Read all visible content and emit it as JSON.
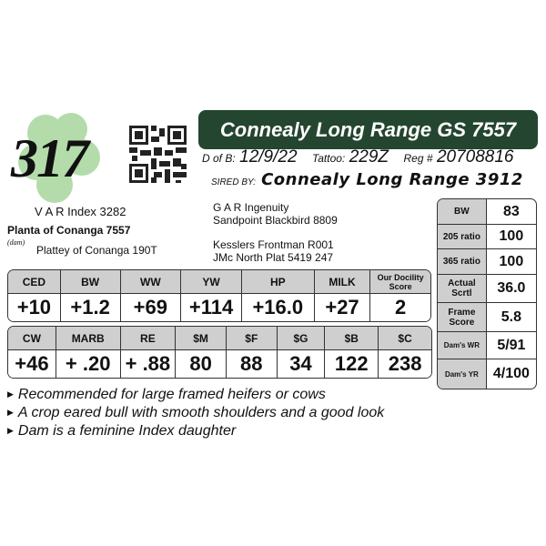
{
  "lot_number": "317",
  "title": "Connealy Long Range GS 7557",
  "info": {
    "dob_label": "D of B:",
    "dob": "12/9/22",
    "tattoo_label": "Tattoo:",
    "tattoo": "229Z",
    "reg_label": "Reg #",
    "reg": "20708816"
  },
  "sire": {
    "label": "SIRED BY:",
    "name": "Connealy Long Range 3912"
  },
  "pedigree": {
    "var_index": "V A R Index 3282",
    "dam": "Planta of Conanga 7557",
    "dam_label": "(dam)",
    "dam_sire": "Plattey of Conanga 190T",
    "sire_sire": "G A R Ingenuity",
    "sire_dam": "Sandpoint Blackbird 8809",
    "dam_line1": "Kesslers Frontman R001",
    "dam_line2": "JMc North Plat 5419 247"
  },
  "epd1": {
    "headers": [
      "CED",
      "BW",
      "WW",
      "YW",
      "HP",
      "MILK",
      "Our Docility Score"
    ],
    "values": [
      "+10",
      "+1.2",
      "+69",
      "+114",
      "+16.0",
      "+27",
      "2"
    ]
  },
  "epd2": {
    "headers": [
      "CW",
      "MARB",
      "RE",
      "$M",
      "$F",
      "$G",
      "$B",
      "$C"
    ],
    "values": [
      "+46",
      "+ .20",
      "+ .88",
      "80",
      "88",
      "34",
      "122",
      "238"
    ]
  },
  "side": [
    {
      "k": "BW",
      "v": "83"
    },
    {
      "k": "205 ratio",
      "v": "100"
    },
    {
      "k": "365 ratio",
      "v": "100"
    },
    {
      "k": "Actual Scrtl",
      "v": "36.0"
    },
    {
      "k": "Frame Score",
      "v": "5.8"
    },
    {
      "k": "Dam's WR",
      "v": "5/91"
    },
    {
      "k": "Dam's YR",
      "v": "4/100"
    }
  ],
  "notes": [
    "Recommended for large framed heifers or cows",
    "A crop eared bull with smooth shoulders and a good look",
    "Dam is a feminine Index daughter"
  ],
  "colors": {
    "banner": "#24452f",
    "header_cell": "#cfcfcf",
    "clover": "#a9d6a0"
  }
}
